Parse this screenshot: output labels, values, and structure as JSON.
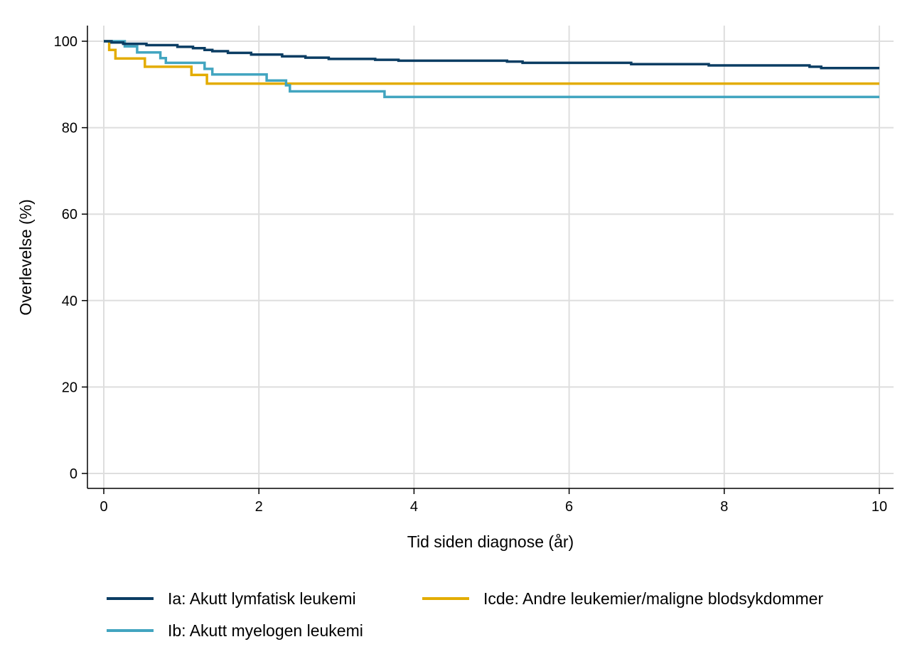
{
  "chart_data": {
    "type": "line",
    "step": true,
    "xlabel": "Tid siden diagnose (år)",
    "ylabel": "Overlevelse (%)",
    "xlim": [
      0,
      10
    ],
    "ylim": [
      0,
      100
    ],
    "xticks": [
      0,
      2,
      4,
      6,
      8,
      10
    ],
    "yticks": [
      0,
      20,
      40,
      60,
      80,
      100
    ],
    "grid": true,
    "legend_position": "bottom",
    "series": [
      {
        "name": "Ia: Akutt lymfatisk leukemi",
        "color": "#0b3d63",
        "x": [
          0,
          0.1,
          0.25,
          0.55,
          0.95,
          1.15,
          1.3,
          1.4,
          1.6,
          1.9,
          2.3,
          2.6,
          2.9,
          3.5,
          3.8,
          5.2,
          5.4,
          6.8,
          7.8,
          9.1,
          9.25,
          10
        ],
        "y": [
          100,
          99.7,
          99.4,
          99.1,
          98.7,
          98.4,
          98.0,
          97.7,
          97.3,
          96.9,
          96.5,
          96.2,
          95.9,
          95.7,
          95.5,
          95.3,
          95.0,
          94.7,
          94.4,
          94.1,
          93.8,
          93.8
        ]
      },
      {
        "name": "Ib: Akutt myelogen leukemi",
        "color": "#42a5c0",
        "x": [
          0,
          0.27,
          0.43,
          0.73,
          0.8,
          1.3,
          1.4,
          2.1,
          2.35,
          2.4,
          3.62,
          10
        ],
        "y": [
          100,
          98.8,
          97.4,
          96.1,
          95.0,
          93.6,
          92.3,
          90.9,
          89.8,
          88.4,
          87.1,
          87.1
        ]
      },
      {
        "name": "Icde: Andre leukemier/maligne blodsykdommer",
        "color": "#e3ac00",
        "x": [
          0,
          0.07,
          0.15,
          0.53,
          1.13,
          1.33,
          10
        ],
        "y": [
          100,
          98.0,
          96.0,
          94.1,
          92.2,
          90.2,
          90.2
        ]
      }
    ]
  }
}
